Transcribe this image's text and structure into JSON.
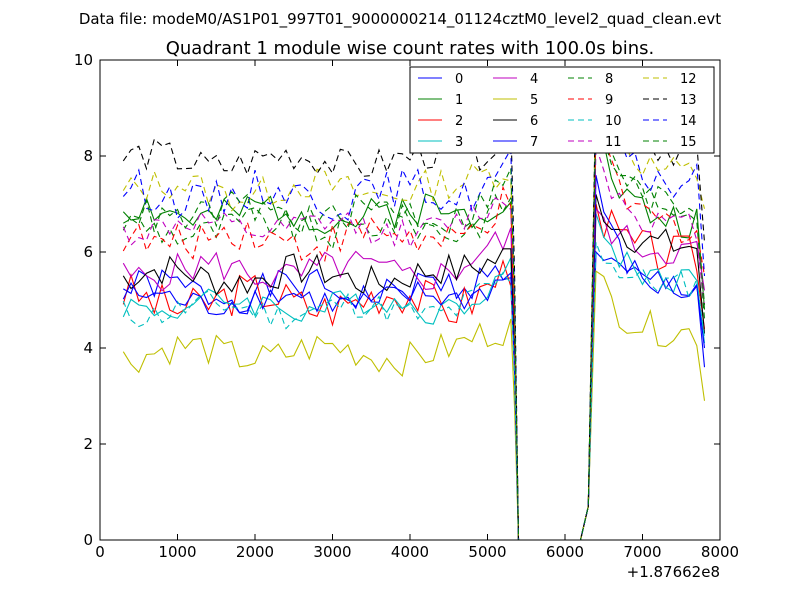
{
  "chart_data": {
    "type": "line",
    "supertitle": "Data file: modeM0/AS1P01_997T01_9000000214_01124cztM0_level2_quad_clean.evt",
    "title": "Quadrant 1 module wise count rates with 100.0s bins.",
    "xlabel": "",
    "ylabel": "",
    "xlim": [
      0,
      8000
    ],
    "ylim": [
      0,
      10
    ],
    "x_offset_label": "+1.87662e8",
    "x_ticks": [
      0,
      1000,
      2000,
      3000,
      4000,
      5000,
      6000,
      7000,
      8000
    ],
    "x_tick_labels": [
      "0",
      "1000",
      "2000",
      "3000",
      "4000",
      "5000",
      "6000",
      "7000",
      "8000"
    ],
    "y_ticks": [
      0,
      2,
      4,
      6,
      8,
      10
    ],
    "y_tick_labels": [
      "0",
      "2",
      "4",
      "6",
      "8",
      "10"
    ],
    "legend_position": "top-right",
    "legend_columns": 4,
    "gap_start": 5400,
    "gap_end": 6200,
    "bins_pre": [
      300,
      5300,
      100
    ],
    "bins_post": [
      6400,
      7800,
      100
    ],
    "series": [
      {
        "name": "0",
        "color": "#0000ff",
        "dash": "solid",
        "base": 5.2,
        "amp": 0.35,
        "jump": 6.0,
        "post": 5.3,
        "end": 3.6,
        "seed": 1
      },
      {
        "name": "1",
        "color": "#008000",
        "dash": "solid",
        "base": 6.8,
        "amp": 0.4,
        "jump": 8.6,
        "post": 6.6,
        "end": 4.8,
        "seed": 2
      },
      {
        "name": "2",
        "color": "#ff0000",
        "dash": "solid",
        "base": 5.0,
        "amp": 0.45,
        "jump": 7.0,
        "post": 5.9,
        "end": 4.4,
        "seed": 3
      },
      {
        "name": "3",
        "color": "#00bfbf",
        "dash": "solid",
        "base": 4.9,
        "amp": 0.3,
        "jump": 6.8,
        "post": 5.4,
        "end": 4.1,
        "seed": 4
      },
      {
        "name": "4",
        "color": "#bf00bf",
        "dash": "solid",
        "base": 5.6,
        "amp": 0.35,
        "jump": 6.9,
        "post": 6.0,
        "end": 5.2,
        "seed": 5
      },
      {
        "name": "5",
        "color": "#bfbf00",
        "dash": "solid",
        "base": 3.9,
        "amp": 0.35,
        "jump": 5.6,
        "post": 4.3,
        "end": 2.9,
        "seed": 6
      },
      {
        "name": "6",
        "color": "#000000",
        "dash": "solid",
        "base": 5.5,
        "amp": 0.35,
        "jump": 7.2,
        "post": 6.1,
        "end": 4.3,
        "seed": 7
      },
      {
        "name": "7",
        "color": "#0000ff",
        "dash": "solid",
        "base": 5.0,
        "amp": 0.3,
        "jump": 7.6,
        "post": 5.1,
        "end": 4.0,
        "seed": 8
      },
      {
        "name": "8",
        "color": "#008000",
        "dash": "dashed",
        "base": 6.5,
        "amp": 0.35,
        "jump": 9.4,
        "post": 6.9,
        "end": 4.6,
        "seed": 9
      },
      {
        "name": "9",
        "color": "#ff0000",
        "dash": "dashed",
        "base": 6.3,
        "amp": 0.4,
        "jump": 8.6,
        "post": 6.5,
        "end": 5.5,
        "seed": 10
      },
      {
        "name": "10",
        "color": "#00bfbf",
        "dash": "dashed",
        "base": 4.8,
        "amp": 0.3,
        "jump": 6.2,
        "post": 5.3,
        "end": 4.2,
        "seed": 11
      },
      {
        "name": "11",
        "color": "#bf00bf",
        "dash": "dashed",
        "base": 6.5,
        "amp": 0.3,
        "jump": 8.2,
        "post": 6.5,
        "end": 4.9,
        "seed": 12
      },
      {
        "name": "12",
        "color": "#bfbf00",
        "dash": "dashed",
        "base": 7.3,
        "amp": 0.35,
        "jump": 9.6,
        "post": 7.6,
        "end": 6.9,
        "seed": 13
      },
      {
        "name": "13",
        "color": "#000000",
        "dash": "dashed",
        "base": 7.9,
        "amp": 0.35,
        "jump": 9.6,
        "post": 8.1,
        "end": 6.2,
        "seed": 14
      },
      {
        "name": "14",
        "color": "#0000ff",
        "dash": "dashed",
        "base": 7.2,
        "amp": 0.4,
        "jump": 9.0,
        "post": 7.4,
        "end": 5.5,
        "seed": 15
      },
      {
        "name": "15",
        "color": "#008000",
        "dash": "dashed",
        "base": 6.8,
        "amp": 0.35,
        "jump": 8.9,
        "post": 6.9,
        "end": 4.9,
        "seed": 16
      }
    ]
  }
}
